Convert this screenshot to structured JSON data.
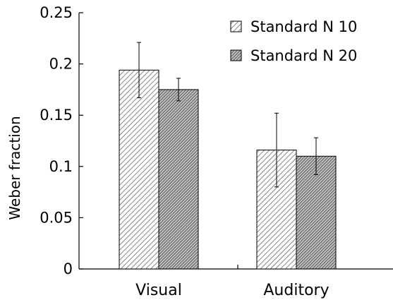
{
  "chart_data": {
    "type": "bar",
    "title": "",
    "xlabel": "",
    "ylabel": "Weber fraction",
    "categories": [
      "Visual",
      "Auditory"
    ],
    "series": [
      {
        "name": "Standard N 10",
        "values": [
          0.194,
          0.116
        ],
        "error": [
          0.027,
          0.036
        ],
        "pattern": "hatch-light"
      },
      {
        "name": "Standard N 20",
        "values": [
          0.175,
          0.11
        ],
        "error": [
          0.011,
          0.018
        ],
        "pattern": "hatch-dark"
      }
    ],
    "ylim": [
      0,
      0.25
    ],
    "yticks": [
      "0",
      "0.05",
      "0.1",
      "0.15",
      "0.2",
      "0.25"
    ],
    "grid": false,
    "legend": "top-right",
    "colors": {
      "axis": "#000000",
      "bar_outline": "#000000",
      "hatch_light": "#555555",
      "hatch_dark": "#222222"
    }
  }
}
